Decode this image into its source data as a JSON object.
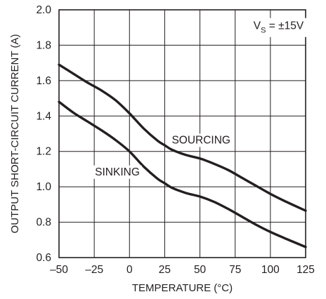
{
  "chart_data": {
    "type": "line",
    "xlabel": "TEMPERATURE (°C)",
    "ylabel": "OUTPUT SHORT-CIRCUIT CURRENT (A)",
    "xlim": [
      -50,
      125
    ],
    "ylim": [
      0.6,
      2.0
    ],
    "grid": true,
    "x_ticks": [
      -50,
      -25,
      0,
      25,
      50,
      75,
      100,
      125
    ],
    "x_tick_labels": [
      "–50",
      "–25",
      "0",
      "25",
      "50",
      "75",
      "100",
      "125"
    ],
    "y_ticks": [
      0.6,
      0.8,
      1.0,
      1.2,
      1.4,
      1.6,
      1.8,
      2.0
    ],
    "y_tick_labels": [
      "0.6",
      "0.8",
      "1.0",
      "1.2",
      "1.4",
      "1.6",
      "1.8",
      "2.0"
    ],
    "annotation": {
      "main": "V",
      "sub": "S",
      "rest": " = ±15V"
    },
    "series": [
      {
        "name": "SOURCING",
        "x": [
          -50,
          -40,
          -30,
          -20,
          -10,
          0,
          10,
          20,
          25,
          30,
          40,
          50,
          60,
          70,
          80,
          90,
          100,
          110,
          125
        ],
        "y": [
          1.69,
          1.64,
          1.59,
          1.545,
          1.49,
          1.415,
          1.33,
          1.26,
          1.235,
          1.21,
          1.18,
          1.16,
          1.13,
          1.095,
          1.05,
          1.005,
          0.96,
          0.92,
          0.865
        ]
      },
      {
        "name": "SINKING",
        "x": [
          -50,
          -40,
          -30,
          -20,
          -10,
          0,
          10,
          20,
          25,
          30,
          40,
          50,
          60,
          70,
          80,
          90,
          100,
          110,
          125
        ],
        "y": [
          1.48,
          1.42,
          1.37,
          1.32,
          1.265,
          1.2,
          1.115,
          1.045,
          1.02,
          0.995,
          0.965,
          0.945,
          0.915,
          0.875,
          0.83,
          0.785,
          0.745,
          0.71,
          0.66
        ]
      }
    ]
  }
}
